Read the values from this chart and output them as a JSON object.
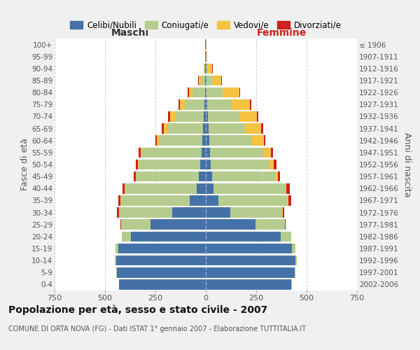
{
  "age_groups": [
    "0-4",
    "5-9",
    "10-14",
    "15-19",
    "20-24",
    "25-29",
    "30-34",
    "35-39",
    "40-44",
    "45-49",
    "50-54",
    "55-59",
    "60-64",
    "65-69",
    "70-74",
    "75-79",
    "80-84",
    "85-89",
    "90-94",
    "95-99",
    "100+"
  ],
  "birth_years": [
    "2002-2006",
    "1997-2001",
    "1992-1996",
    "1987-1991",
    "1982-1986",
    "1977-1981",
    "1972-1976",
    "1967-1971",
    "1962-1966",
    "1957-1961",
    "1952-1956",
    "1947-1951",
    "1942-1946",
    "1937-1941",
    "1932-1936",
    "1927-1931",
    "1922-1926",
    "1917-1921",
    "1912-1916",
    "1907-1911",
    "≤ 1906"
  ],
  "males": {
    "celibe": [
      430,
      440,
      445,
      435,
      370,
      275,
      165,
      80,
      45,
      35,
      28,
      22,
      18,
      15,
      12,
      8,
      5,
      4,
      3,
      2,
      2
    ],
    "coniugato": [
      2,
      3,
      5,
      12,
      45,
      145,
      265,
      340,
      355,
      310,
      305,
      295,
      215,
      175,
      140,
      95,
      60,
      20,
      5,
      2,
      0
    ],
    "vedovo": [
      0,
      0,
      0,
      0,
      1,
      1,
      2,
      2,
      2,
      2,
      3,
      5,
      10,
      20,
      25,
      25,
      20,
      12,
      3,
      1,
      0
    ],
    "divorziato": [
      0,
      0,
      0,
      0,
      2,
      3,
      8,
      12,
      12,
      10,
      12,
      12,
      8,
      10,
      10,
      8,
      5,
      1,
      0,
      0,
      0
    ]
  },
  "females": {
    "nubile": [
      425,
      440,
      443,
      428,
      370,
      248,
      120,
      62,
      38,
      30,
      25,
      20,
      18,
      15,
      12,
      8,
      5,
      3,
      2,
      1,
      1
    ],
    "coniugata": [
      2,
      3,
      8,
      18,
      52,
      143,
      258,
      345,
      358,
      315,
      292,
      268,
      210,
      180,
      155,
      120,
      80,
      30,
      10,
      2,
      0
    ],
    "vedova": [
      0,
      0,
      0,
      0,
      1,
      2,
      3,
      3,
      5,
      12,
      20,
      35,
      60,
      80,
      85,
      90,
      80,
      45,
      20,
      5,
      1
    ],
    "divorziata": [
      0,
      0,
      0,
      0,
      1,
      3,
      8,
      12,
      15,
      12,
      12,
      12,
      8,
      10,
      8,
      8,
      5,
      2,
      1,
      0,
      0
    ]
  },
  "colors": {
    "celibe": "#4472a8",
    "coniugato": "#b5cc8e",
    "vedovo": "#f5c242",
    "divorziato": "#cc2222"
  },
  "xlim": 750,
  "title": "Popolazione per età, sesso e stato civile - 2007",
  "subtitle": "COMUNE DI ORTA NOVA (FG) - Dati ISTAT 1° gennaio 2007 - Elaborazione TUTTITALIA.IT",
  "ylabel_left": "Fasce di età",
  "ylabel_right": "Anni di nascita",
  "xlabel_maschi": "Maschi",
  "xlabel_femmine": "Femmine",
  "legend_labels": [
    "Celibi/Nubili",
    "Coniugati/e",
    "Vedovi/e",
    "Divorziati/e"
  ],
  "bg_color": "#f0f0f0",
  "plot_bg": "#ffffff",
  "grid_color": "#cccccc"
}
